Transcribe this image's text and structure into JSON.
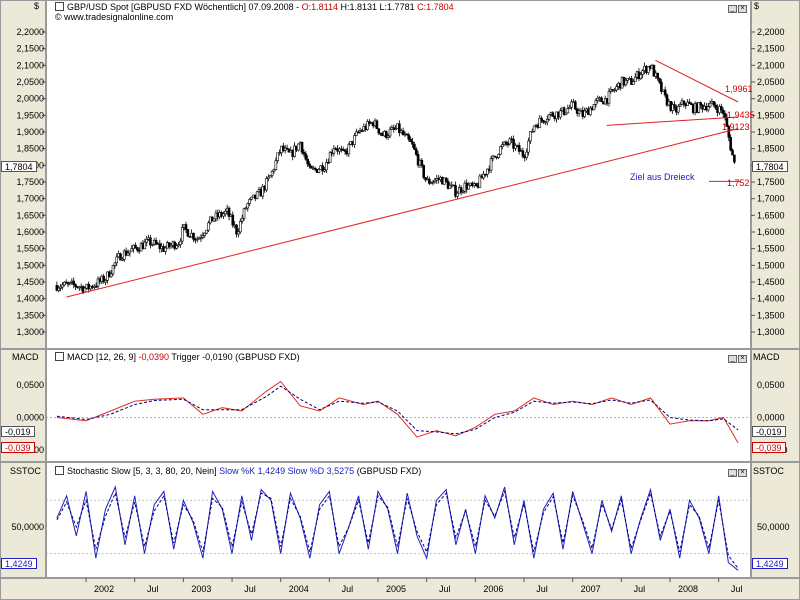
{
  "price_pane": {
    "currency_left": "$",
    "currency_right": "$",
    "title": "GBP/USD Spot [GBPUSD FXD  Wöchentlich] 07.09.2008 - ",
    "ohlc": {
      "o": "O:1.8114",
      "h": "H:1.8131",
      "l": "L:1.7781",
      "c": "C:1.7804"
    },
    "watermark": "© www.tradesignalonline.com",
    "last_price_tag": "1,7804",
    "annotations": {
      "level_1": "1,9961",
      "level_2": "1,9435",
      "level_3": "1,9123",
      "target_text": "Ziel aus Dreieck",
      "target_value": "1,752"
    },
    "ticks": [
      "2,2000",
      "2,1500",
      "2,1000",
      "2,0500",
      "2,0000",
      "1,9500",
      "1,9000",
      "1,8500",
      "1,8000",
      "1,7500",
      "1,7000",
      "1,6500",
      "1,6000",
      "1,5500",
      "1,5000",
      "1,4500",
      "1,4000",
      "1,3500",
      "1,3000"
    ]
  },
  "macd_pane": {
    "label_left": "MACD",
    "label_right": "MACD",
    "title_main": "MACD [12, 26, 9] ",
    "title_value": "-0,0390",
    "title_trigger": " Trigger -0,0190",
    "title_tail": " (GBPUSD FXD)",
    "ticks": [
      "0,0500",
      "0,0000",
      "-0,0500"
    ],
    "tag_trigger": "-0,019",
    "tag_macd": "-0,039"
  },
  "stoch_pane": {
    "label_left": "SSTOC",
    "label_right": "SSTOC",
    "title_main": "Stochastic Slow [5, 3, 3, 80, 20, Nein] ",
    "title_k": "Slow %K 1,4249",
    "title_d": " Slow %D 3,5275",
    "title_tail": " (GBPUSD FXD)",
    "ticks": [
      "50,0000"
    ],
    "tag_k": "1,4249"
  },
  "time_axis": [
    "2002",
    "Jul",
    "2003",
    "Jul",
    "2004",
    "Jul",
    "2005",
    "Jul",
    "2006",
    "Jul",
    "2007",
    "Jul",
    "2008",
    "Jul"
  ],
  "chart_data": [
    {
      "type": "candlestick",
      "title": "GBP/USD Spot [GBPUSD FXD Wöchentlich] 07.09.2008",
      "ylim": [
        1.27,
        2.23
      ],
      "x_range": [
        "2001-09",
        "2008-09"
      ],
      "close_path": {
        "x": [
          2001.7,
          2001.9,
          2002.0,
          2002.2,
          2002.35,
          2002.5,
          2002.65,
          2002.8,
          2002.95,
          2003.0,
          2003.15,
          2003.3,
          2003.45,
          2003.55,
          2003.65,
          2003.8,
          2003.9,
          2004.0,
          2004.1,
          2004.2,
          2004.3,
          2004.45,
          2004.55,
          2004.65,
          2004.8,
          2004.95,
          2005.05,
          2005.2,
          2005.35,
          2005.5,
          2005.65,
          2005.8,
          2005.9,
          2006.0,
          2006.1,
          2006.25,
          2006.35,
          2006.5,
          2006.6,
          2006.75,
          2006.9,
          2007.0,
          2007.1,
          2007.25,
          2007.35,
          2007.5,
          2007.6,
          2007.7,
          2007.8,
          2007.95,
          2008.05,
          2008.15,
          2008.25,
          2008.35,
          2008.45,
          2008.55,
          2008.62,
          2008.68
        ],
        "y": [
          1.44,
          1.44,
          1.43,
          1.46,
          1.53,
          1.55,
          1.57,
          1.55,
          1.57,
          1.61,
          1.58,
          1.64,
          1.66,
          1.6,
          1.68,
          1.72,
          1.77,
          1.85,
          1.83,
          1.87,
          1.78,
          1.8,
          1.86,
          1.83,
          1.9,
          1.93,
          1.89,
          1.91,
          1.86,
          1.75,
          1.76,
          1.72,
          1.74,
          1.73,
          1.78,
          1.85,
          1.87,
          1.83,
          1.92,
          1.95,
          1.96,
          1.98,
          1.95,
          1.99,
          2.0,
          2.05,
          2.05,
          2.08,
          2.1,
          2.0,
          1.96,
          1.99,
          1.97,
          1.98,
          1.98,
          1.96,
          1.86,
          1.78
        ]
      },
      "trendlines": [
        {
          "name": "support",
          "from": [
            2001.8,
            1.405
          ],
          "to": [
            2008.7,
            1.91
          ]
        },
        {
          "name": "triangle-upper",
          "from": [
            2007.85,
            2.115
          ],
          "to": [
            2008.7,
            1.99
          ]
        },
        {
          "name": "triangle-lower",
          "from": [
            2007.35,
            1.92
          ],
          "to": [
            2008.7,
            1.945
          ]
        },
        {
          "name": "target",
          "from": [
            2008.4,
            1.752
          ],
          "to": [
            2008.72,
            1.752
          ]
        }
      ],
      "last_close": 1.7804
    },
    {
      "type": "line",
      "title": "MACD [12, 26, 9] -0,0390 Trigger -0,0190 (GBPUSD FXD)",
      "ylim": [
        -0.065,
        0.085
      ],
      "x": [
        2001.7,
        2002.0,
        2002.25,
        2002.5,
        2002.7,
        2003.0,
        2003.2,
        2003.4,
        2003.6,
        2003.85,
        2004.0,
        2004.2,
        2004.4,
        2004.6,
        2004.85,
        2005.0,
        2005.2,
        2005.4,
        2005.6,
        2005.8,
        2006.0,
        2006.2,
        2006.4,
        2006.6,
        2006.8,
        2007.0,
        2007.2,
        2007.4,
        2007.6,
        2007.8,
        2008.0,
        2008.2,
        2008.4,
        2008.55,
        2008.7
      ],
      "series": [
        {
          "name": "MACD",
          "color": "#e03020",
          "values": [
            0.0,
            -0.005,
            0.01,
            0.025,
            0.028,
            0.03,
            0.005,
            0.015,
            0.01,
            0.04,
            0.055,
            0.018,
            0.01,
            0.03,
            0.02,
            0.025,
            0.005,
            -0.03,
            -0.02,
            -0.028,
            -0.015,
            0.005,
            0.01,
            0.03,
            0.02,
            0.025,
            0.02,
            0.03,
            0.02,
            0.03,
            -0.01,
            -0.005,
            -0.005,
            0.0,
            -0.039
          ]
        },
        {
          "name": "Trigger",
          "color": "#000080",
          "values": [
            0.002,
            -0.003,
            0.005,
            0.02,
            0.026,
            0.028,
            0.012,
            0.012,
            0.012,
            0.032,
            0.048,
            0.028,
            0.012,
            0.025,
            0.022,
            0.024,
            0.01,
            -0.02,
            -0.022,
            -0.025,
            -0.018,
            0.0,
            0.008,
            0.025,
            0.022,
            0.024,
            0.021,
            0.027,
            0.022,
            0.027,
            0.0,
            -0.004,
            -0.005,
            -0.002,
            -0.019
          ]
        }
      ]
    },
    {
      "type": "line",
      "title": "Stochastic Slow [5, 3, 3, 80, 20, Nein] Slow %K 1,4249 Slow %D 3,5275 (GBPUSD FXD)",
      "ylim": [
        -5,
        105
      ],
      "thresholds": [
        80,
        20
      ],
      "x": [
        2001.7,
        2001.8,
        2001.9,
        2002.0,
        2002.1,
        2002.2,
        2002.3,
        2002.4,
        2002.5,
        2002.6,
        2002.7,
        2002.8,
        2002.9,
        2003.0,
        2003.1,
        2003.2,
        2003.3,
        2003.4,
        2003.5,
        2003.6,
        2003.7,
        2003.8,
        2003.9,
        2004.0,
        2004.1,
        2004.2,
        2004.3,
        2004.4,
        2004.5,
        2004.6,
        2004.7,
        2004.8,
        2004.9,
        2005.0,
        2005.1,
        2005.2,
        2005.3,
        2005.4,
        2005.5,
        2005.6,
        2005.7,
        2005.8,
        2005.9,
        2006.0,
        2006.1,
        2006.2,
        2006.3,
        2006.4,
        2006.5,
        2006.6,
        2006.7,
        2006.8,
        2006.9,
        2007.0,
        2007.1,
        2007.2,
        2007.3,
        2007.4,
        2007.5,
        2007.6,
        2007.7,
        2007.8,
        2007.9,
        2008.0,
        2008.1,
        2008.2,
        2008.3,
        2008.4,
        2008.5,
        2008.6,
        2008.7
      ],
      "series": [
        {
          "name": "Slow %K",
          "color": "#2020c0",
          "values": [
            60,
            85,
            40,
            90,
            15,
            70,
            95,
            30,
            85,
            20,
            75,
            90,
            25,
            80,
            55,
            15,
            90,
            70,
            20,
            85,
            35,
            92,
            80,
            20,
            88,
            60,
            15,
            75,
            90,
            20,
            50,
            85,
            25,
            90,
            70,
            20,
            88,
            40,
            15,
            80,
            92,
            30,
            70,
            20,
            85,
            60,
            95,
            30,
            80,
            15,
            70,
            88,
            25,
            90,
            55,
            20,
            80,
            45,
            85,
            20,
            60,
            92,
            35,
            70,
            15,
            80,
            60,
            20,
            85,
            10,
            1.4249
          ]
        },
        {
          "name": "Slow %D",
          "color": "#000080",
          "values": [
            58,
            78,
            50,
            80,
            25,
            62,
            88,
            38,
            78,
            28,
            68,
            85,
            32,
            75,
            58,
            22,
            82,
            72,
            28,
            78,
            42,
            88,
            82,
            28,
            82,
            62,
            22,
            70,
            85,
            28,
            50,
            80,
            32,
            85,
            72,
            28,
            82,
            45,
            22,
            75,
            88,
            38,
            68,
            28,
            80,
            62,
            90,
            38,
            76,
            22,
            66,
            84,
            32,
            85,
            58,
            26,
            76,
            48,
            80,
            26,
            58,
            88,
            40,
            68,
            22,
            75,
            62,
            26,
            80,
            18,
            3.5275
          ]
        }
      ]
    }
  ]
}
